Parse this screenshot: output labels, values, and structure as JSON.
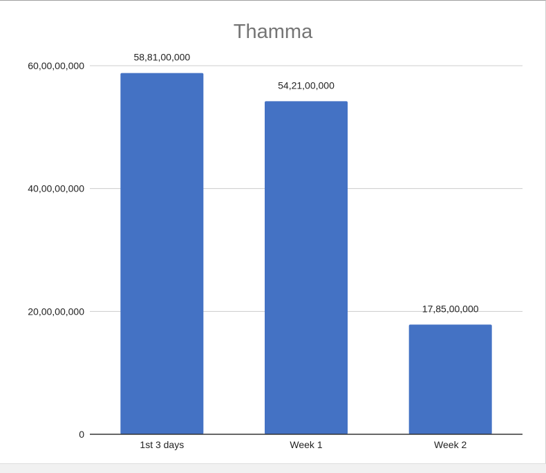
{
  "chart_data": {
    "type": "bar",
    "title": "Thamma",
    "xlabel": "",
    "ylabel": "",
    "categories": [
      "1st 3 days",
      "Week 1",
      "Week 2"
    ],
    "values": [
      588100000,
      542100000,
      178500000
    ],
    "data_labels": [
      "58,81,00,000",
      "54,21,00,000",
      "17,85,00,000"
    ],
    "ylim": [
      0,
      600000000
    ],
    "y_ticks": [
      0,
      200000000,
      400000000,
      600000000
    ],
    "y_tick_labels": [
      "0",
      "20,00,00,000",
      "40,00,00,000",
      "60,00,00,000"
    ],
    "grid": true,
    "legend": "none",
    "bar_color": "#4472c4"
  }
}
